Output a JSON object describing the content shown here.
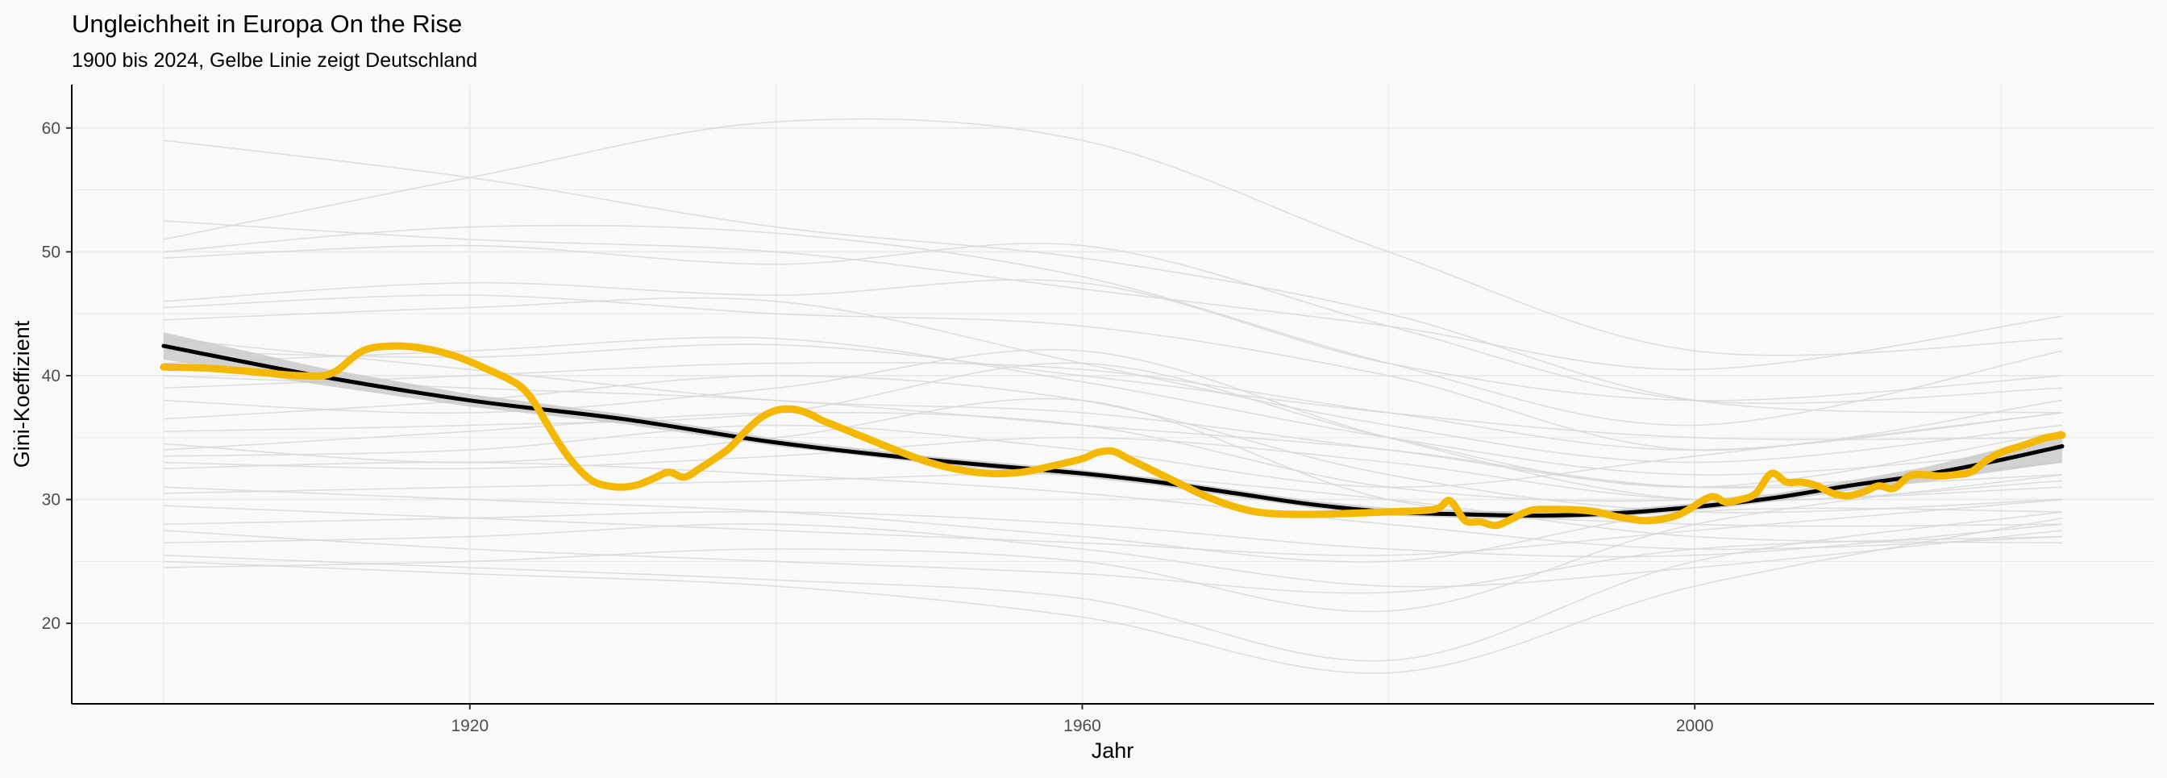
{
  "chart_data": {
    "type": "line",
    "title": "Ungleichheit in Europa On the Rise",
    "subtitle": "1900 bis 2024, Gelbe Linie zeigt Deutschland",
    "xlabel": "Jahr",
    "ylabel": "Gini-Koeffizient",
    "xlim": [
      1894,
      2030
    ],
    "ylim": [
      13.5,
      63.5
    ],
    "x_ticks": [
      1920,
      1960,
      2000
    ],
    "y_ticks": [
      20,
      30,
      40,
      50,
      60
    ],
    "grid": true,
    "legend": "none",
    "colors": {
      "background": "#f9f9f9",
      "grid": "#ebebeb",
      "background_lines": "#d9d9d9",
      "trend": "#000000",
      "confidence_band": "#c8c8c8",
      "highlight": "#f5b800"
    },
    "series": [
      {
        "role": "highlight",
        "x": [
          1900,
          1903,
          1906,
          1909,
          1911,
          1913,
          1915,
          1917,
          1919,
          1921,
          1923,
          1924,
          1925,
          1926,
          1927,
          1928,
          1929,
          1930,
          1931,
          1932,
          1933,
          1934,
          1935,
          1936,
          1937,
          1938,
          1939,
          1940,
          1941,
          1942,
          1943,
          1944,
          1946,
          1948,
          1950,
          1952,
          1954,
          1956,
          1958,
          1960,
          1961,
          1962,
          1963,
          1964,
          1966,
          1968,
          1970,
          1972,
          1975,
          1980,
          1983,
          1984,
          1985,
          1986,
          1987,
          1988,
          1989,
          1990,
          1993,
          1995,
          1997,
          1999,
          2001,
          2002,
          2003,
          2004,
          2005,
          2006,
          2007,
          2008,
          2009,
          2010,
          2011,
          2012,
          2013,
          2014,
          2015,
          2016,
          2017,
          2018,
          2019,
          2020,
          2021,
          2022,
          2023,
          2024
        ],
        "y": [
          40.7,
          40.6,
          40.3,
          40.0,
          40.2,
          42.0,
          42.4,
          42.2,
          41.6,
          40.6,
          39.4,
          38.2,
          36.2,
          34.2,
          32.6,
          31.5,
          31.1,
          31.0,
          31.2,
          31.7,
          32.2,
          31.8,
          32.5,
          33.3,
          34.2,
          35.5,
          36.6,
          37.2,
          37.3,
          37.0,
          36.4,
          35.9,
          34.9,
          33.9,
          33.0,
          32.4,
          32.1,
          32.2,
          32.7,
          33.3,
          33.8,
          33.9,
          33.3,
          32.7,
          31.5,
          30.3,
          29.4,
          28.9,
          28.8,
          29.0,
          29.2,
          29.9,
          28.3,
          28.2,
          27.9,
          28.4,
          29.0,
          29.2,
          29.1,
          28.6,
          28.3,
          28.8,
          30.2,
          29.8,
          30.0,
          30.5,
          32.1,
          31.4,
          31.4,
          31.1,
          30.5,
          30.3,
          30.6,
          31.1,
          30.9,
          31.9,
          32.0,
          31.9,
          32.0,
          32.2,
          33.1,
          33.8,
          34.2,
          34.6,
          35.0,
          35.2
        ]
      },
      {
        "role": "trend",
        "x": [
          1900,
          1910,
          1920,
          1930,
          1940,
          1950,
          1960,
          1965,
          1970,
          1975,
          1980,
          1985,
          1990,
          1995,
          2000,
          2005,
          2010,
          2015,
          2020,
          2024
        ],
        "y": [
          42.4,
          40.0,
          38.0,
          36.5,
          34.6,
          33.2,
          32.1,
          31.4,
          30.5,
          29.6,
          29.0,
          28.8,
          28.7,
          28.9,
          29.4,
          30.1,
          31.1,
          32.0,
          33.2,
          34.3
        ],
        "band_lower": [
          41.3,
          39.3,
          37.5,
          36.1,
          34.3,
          32.9,
          31.8,
          31.1,
          30.2,
          29.3,
          28.7,
          28.5,
          28.4,
          28.6,
          29.1,
          29.8,
          30.7,
          31.4,
          32.3,
          33.0
        ],
        "band_upper": [
          43.5,
          40.7,
          38.5,
          36.9,
          34.9,
          33.5,
          32.4,
          31.7,
          30.8,
          29.9,
          29.3,
          29.1,
          29.0,
          29.2,
          29.7,
          30.4,
          31.5,
          32.6,
          34.1,
          35.6
        ]
      },
      {
        "role": "background",
        "x": [
          1900,
          1920,
          1940,
          1960,
          1980,
          2000,
          2024
        ],
        "y_lines": [
          [
            59.0,
            56.0,
            52.0,
            49.5,
            45.0,
            38.0,
            37.0
          ],
          [
            51.0,
            56.0,
            60.5,
            59.0,
            50.0,
            42.0,
            43.0
          ],
          [
            52.5,
            51.0,
            50.0,
            47.0,
            44.0,
            40.5,
            44.8
          ],
          [
            50.0,
            52.0,
            51.5,
            48.0,
            41.0,
            36.0,
            42.0
          ],
          [
            49.5,
            50.5,
            49.0,
            50.5,
            44.0,
            38.0,
            39.0
          ],
          [
            45.5,
            46.5,
            45.0,
            44.0,
            40.0,
            34.0,
            38.0
          ],
          [
            44.5,
            45.5,
            46.0,
            41.0,
            36.0,
            33.0,
            36.0
          ],
          [
            43.0,
            40.5,
            38.0,
            37.0,
            34.0,
            31.0,
            33.0
          ],
          [
            42.0,
            41.5,
            42.5,
            40.0,
            37.0,
            35.0,
            35.0
          ],
          [
            40.0,
            39.0,
            38.0,
            36.0,
            34.0,
            31.0,
            32.0
          ],
          [
            39.0,
            40.0,
            41.0,
            40.5,
            37.0,
            34.0,
            37.0
          ],
          [
            38.0,
            37.0,
            39.0,
            42.0,
            35.0,
            30.0,
            31.5
          ],
          [
            36.5,
            38.0,
            40.0,
            38.0,
            32.0,
            29.0,
            30.0
          ],
          [
            34.5,
            33.0,
            35.0,
            38.0,
            30.0,
            28.0,
            28.0
          ],
          [
            34.0,
            35.5,
            37.0,
            36.0,
            31.0,
            30.0,
            33.0
          ],
          [
            33.5,
            34.0,
            36.0,
            34.0,
            31.0,
            33.5,
            37.0
          ],
          [
            33.0,
            32.5,
            33.5,
            35.0,
            33.0,
            30.0,
            31.0
          ],
          [
            32.5,
            33.0,
            32.0,
            30.5,
            28.0,
            26.0,
            27.0
          ],
          [
            31.0,
            30.0,
            29.0,
            27.0,
            25.0,
            29.0,
            29.0
          ],
          [
            30.5,
            31.0,
            31.5,
            32.0,
            30.0,
            27.0,
            26.5
          ],
          [
            29.5,
            28.5,
            27.5,
            26.5,
            25.5,
            27.5,
            30.0
          ],
          [
            28.0,
            28.5,
            29.0,
            28.0,
            26.0,
            25.5,
            28.0
          ],
          [
            27.5,
            26.0,
            25.0,
            24.0,
            22.5,
            26.0,
            27.0
          ],
          [
            26.5,
            27.0,
            28.0,
            26.0,
            23.0,
            24.5,
            27.5
          ],
          [
            25.5,
            24.5,
            23.5,
            22.0,
            17.0,
            25.0,
            29.0
          ],
          [
            25.0,
            24.0,
            23.0,
            20.5,
            16.0,
            23.0,
            28.5
          ],
          [
            24.5,
            25.0,
            26.0,
            25.0,
            21.0,
            28.0,
            32.0
          ],
          [
            35.5,
            36.0,
            37.0,
            41.0,
            35.0,
            31.0,
            35.5
          ],
          [
            46.0,
            47.5,
            46.5,
            47.5,
            41.0,
            38.0,
            40.0
          ],
          [
            41.0,
            42.0,
            43.0,
            39.5,
            35.0,
            32.0,
            34.0
          ]
        ]
      }
    ]
  }
}
